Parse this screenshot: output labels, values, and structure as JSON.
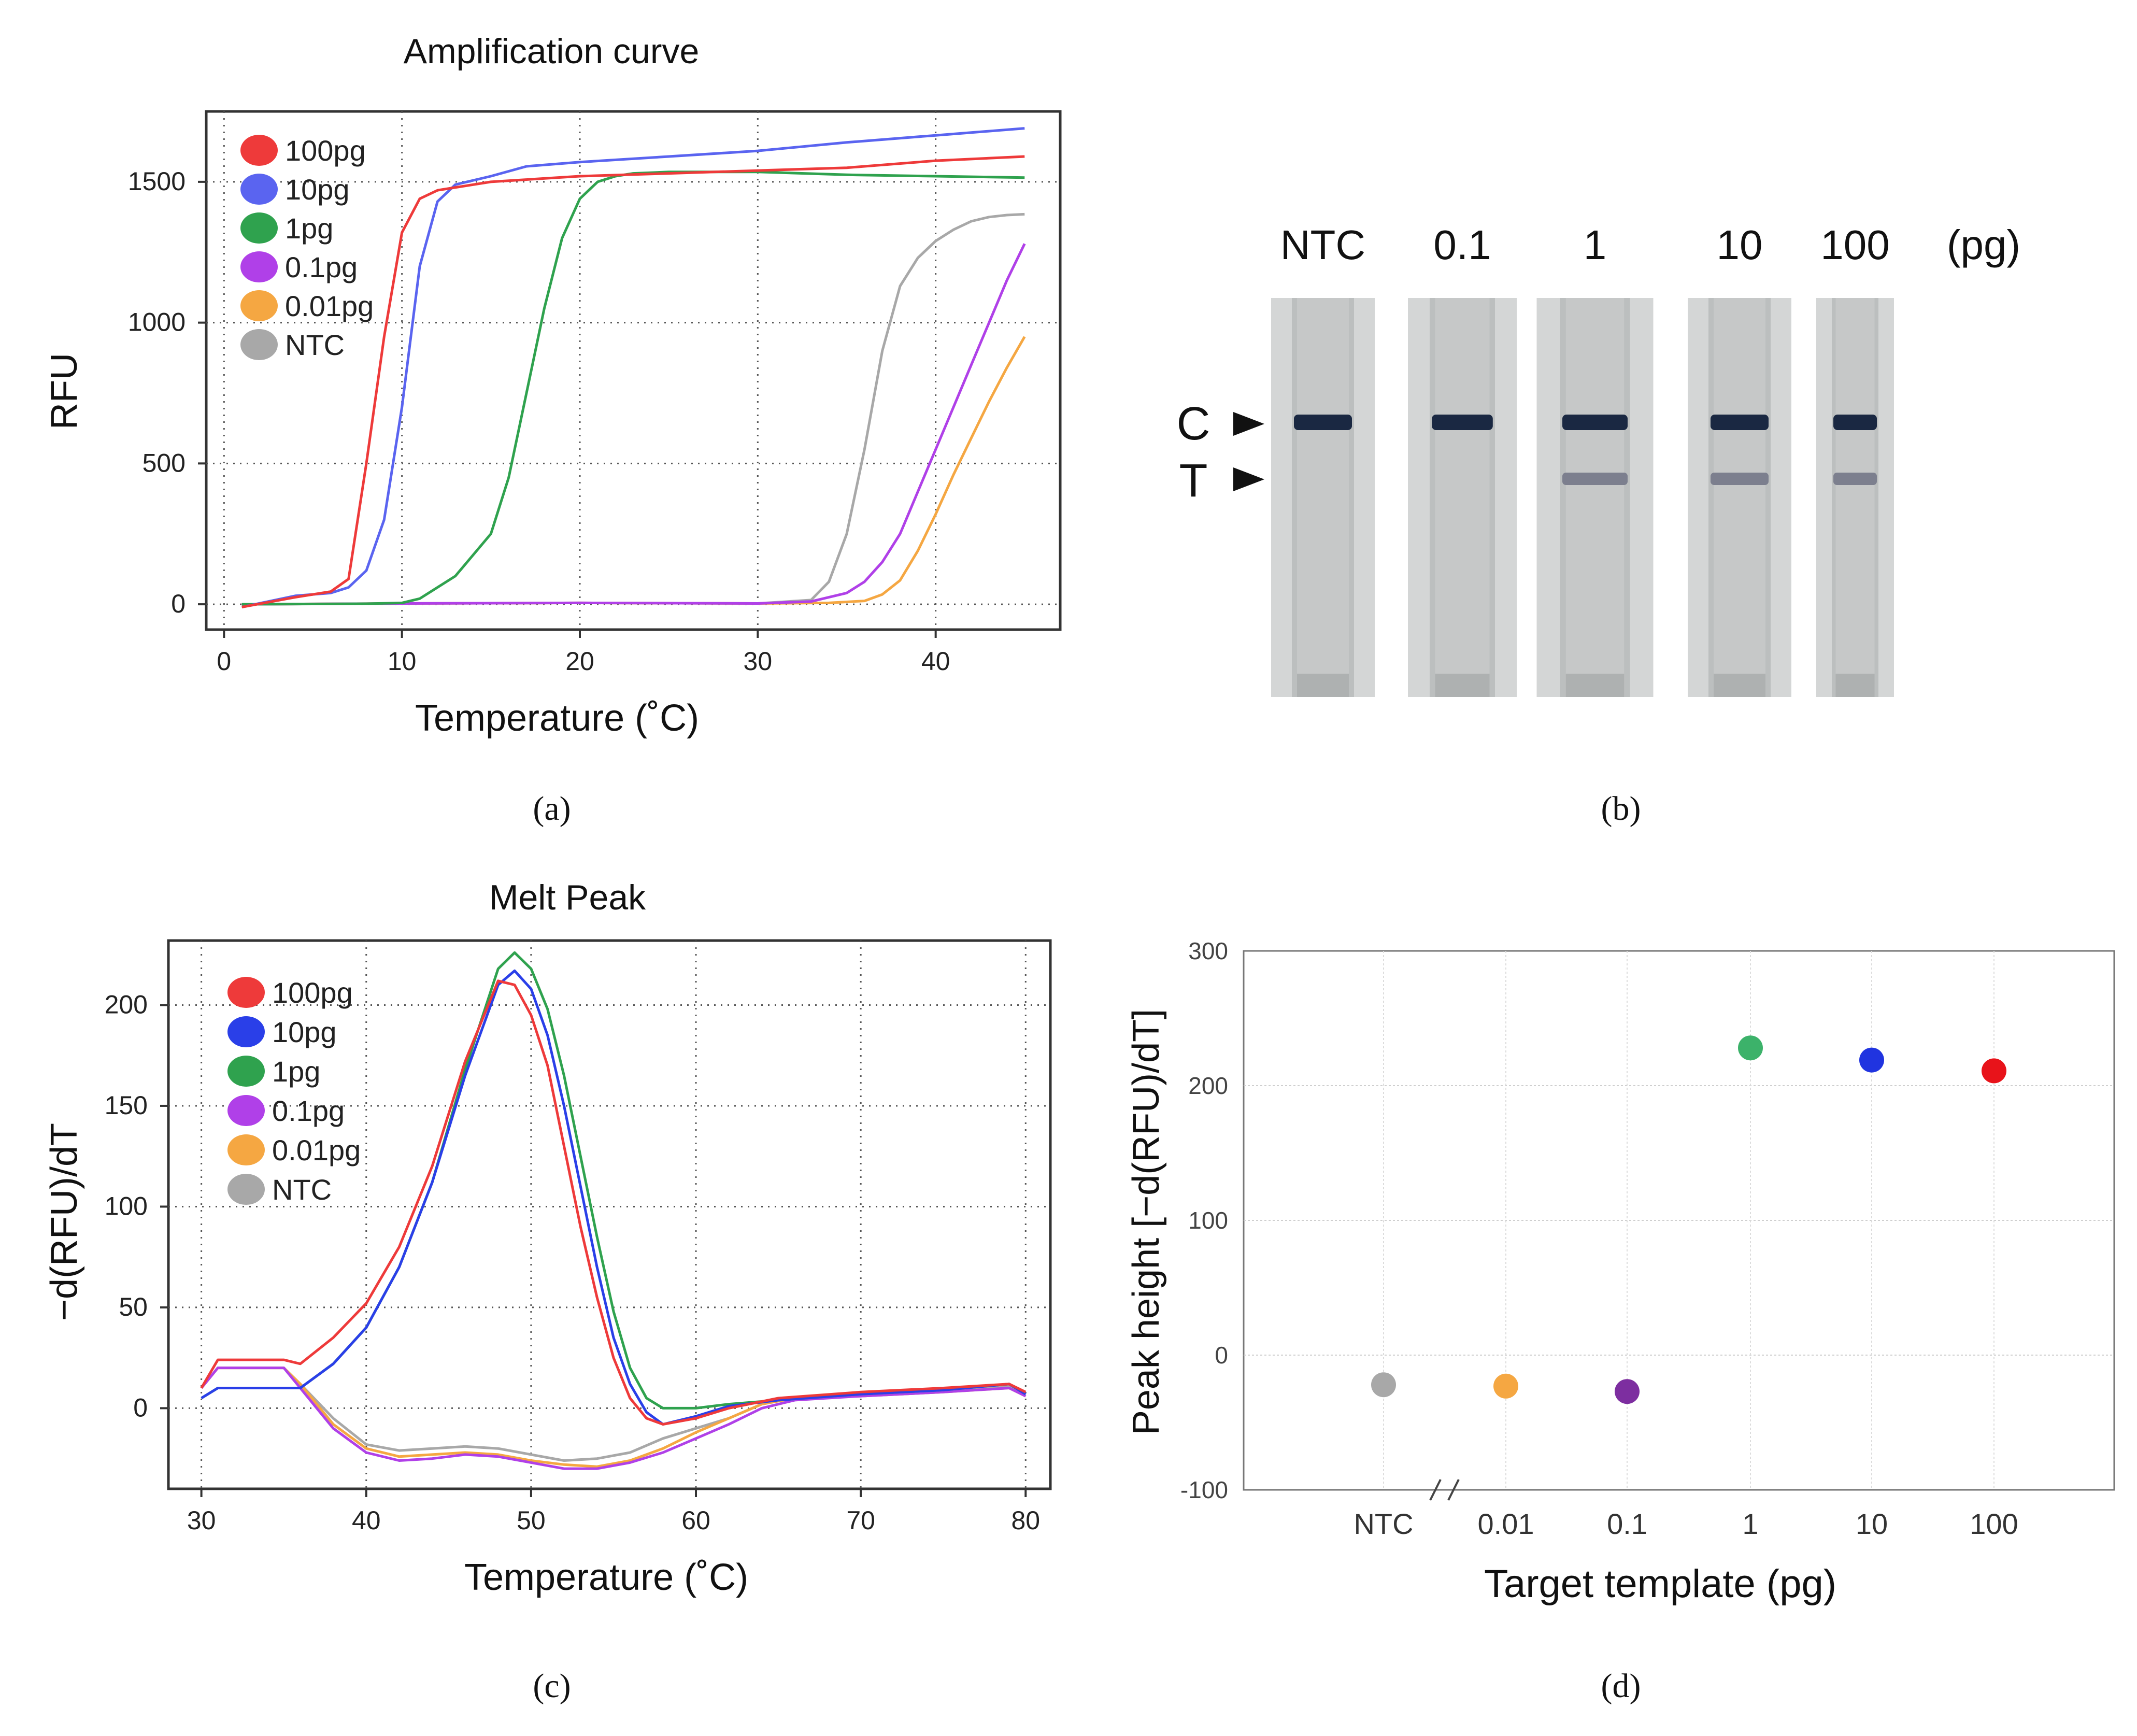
{
  "chart_data": [
    {
      "panel": "a",
      "type": "line",
      "title": "Amplification curve",
      "xlabel": "Temperature (˚C)",
      "ylabel": "RFU",
      "xlim": [
        -1,
        47
      ],
      "ylim": [
        -90,
        1750
      ],
      "xticks": [
        0,
        10,
        20,
        30,
        40
      ],
      "yticks": [
        0,
        500,
        1000,
        1500
      ],
      "grid": true,
      "legend_position": "top-left",
      "series": [
        {
          "name": "100pg",
          "color": "#ee3a3a",
          "x": [
            1,
            4,
            6,
            7,
            8,
            9,
            10,
            11,
            12,
            15,
            20,
            25,
            30,
            35,
            40,
            45
          ],
          "y": [
            -10,
            25,
            45,
            90,
            500,
            950,
            1320,
            1440,
            1470,
            1500,
            1520,
            1530,
            1540,
            1550,
            1575,
            1590
          ]
        },
        {
          "name": "10pg",
          "color": "#5a64f0",
          "x": [
            1,
            4,
            6,
            7,
            8,
            9,
            10,
            11,
            12,
            13,
            15,
            17,
            20,
            25,
            30,
            35,
            40,
            45
          ],
          "y": [
            -10,
            30,
            40,
            60,
            120,
            300,
            700,
            1200,
            1430,
            1490,
            1520,
            1555,
            1570,
            1590,
            1610,
            1640,
            1665,
            1690
          ]
        },
        {
          "name": "1pg",
          "color": "#2fa24e",
          "x": [
            1,
            8,
            10,
            11,
            13,
            15,
            16,
            17,
            18,
            19,
            20,
            21,
            22,
            23,
            25,
            30,
            35,
            40,
            45
          ],
          "y": [
            0,
            2,
            5,
            20,
            100,
            250,
            450,
            750,
            1050,
            1300,
            1440,
            1500,
            1520,
            1530,
            1535,
            1535,
            1525,
            1520,
            1515
          ]
        },
        {
          "name": "0.1pg",
          "color": "#b040e8",
          "x": [
            1,
            10,
            20,
            30,
            33,
            35,
            36,
            37,
            38,
            39,
            40,
            41,
            42,
            43,
            44,
            45
          ],
          "y": [
            0,
            3,
            5,
            3,
            10,
            40,
            80,
            150,
            250,
            400,
            550,
            700,
            850,
            1000,
            1150,
            1280
          ]
        },
        {
          "name": "0.01pg",
          "color": "#f5a742",
          "x": [
            1,
            10,
            20,
            30,
            34,
            36,
            37,
            38,
            39,
            40,
            41,
            42,
            43,
            44,
            45
          ],
          "y": [
            0,
            3,
            5,
            3,
            5,
            12,
            35,
            85,
            190,
            320,
            460,
            590,
            720,
            840,
            950
          ]
        },
        {
          "name": "NTC",
          "color": "#a8a8a8",
          "x": [
            1,
            10,
            20,
            30,
            33,
            34,
            35,
            36,
            37,
            38,
            39,
            40,
            41,
            42,
            43,
            44,
            45
          ],
          "y": [
            0,
            3,
            5,
            3,
            15,
            80,
            250,
            550,
            900,
            1130,
            1230,
            1290,
            1330,
            1360,
            1375,
            1382,
            1385
          ]
        }
      ]
    },
    {
      "panel": "b",
      "type": "image",
      "description": "Lateral flow test strips",
      "lanes": [
        "NTC",
        "0.1",
        "1",
        "10",
        "100"
      ],
      "unit": "(pg)",
      "markers": [
        "C",
        "T"
      ],
      "test_line_visible": [
        false,
        false,
        true,
        true,
        true
      ]
    },
    {
      "panel": "c",
      "type": "line",
      "title": "Melt Peak",
      "xlabel": "Temperature (˚C)",
      "ylabel": "−d(RFU)/dT",
      "xlim": [
        28,
        81.5
      ],
      "ylim": [
        -40,
        232
      ],
      "xticks": [
        30,
        40,
        50,
        60,
        70,
        80
      ],
      "yticks": [
        0,
        50,
        100,
        150,
        200
      ],
      "grid": true,
      "legend_position": "top-left",
      "series": [
        {
          "name": "100pg",
          "color": "#ee3a3a",
          "x": [
            30,
            31,
            35,
            36,
            38,
            40,
            42,
            44,
            46,
            48,
            49,
            50,
            51,
            52,
            53,
            54,
            55,
            56,
            57,
            58,
            60,
            62,
            65,
            70,
            75,
            79,
            80
          ],
          "y": [
            10,
            24,
            24,
            22,
            35,
            52,
            80,
            120,
            172,
            212,
            210,
            195,
            170,
            130,
            90,
            55,
            25,
            5,
            -5,
            -8,
            -5,
            0,
            5,
            8,
            10,
            12,
            8
          ]
        },
        {
          "name": "10pg",
          "color": "#2a3fe8",
          "x": [
            30,
            31,
            35,
            36,
            38,
            40,
            42,
            44,
            46,
            48,
            49,
            50,
            51,
            52,
            53,
            54,
            55,
            56,
            57,
            58,
            60,
            62,
            65,
            70,
            75,
            79,
            80
          ],
          "y": [
            5,
            10,
            10,
            10,
            22,
            40,
            70,
            112,
            165,
            210,
            217,
            208,
            185,
            150,
            110,
            70,
            35,
            12,
            -2,
            -8,
            -4,
            1,
            4,
            7,
            9,
            12,
            7
          ]
        },
        {
          "name": "1pg",
          "color": "#2fa24e",
          "x": [
            30,
            31,
            35,
            36,
            38,
            40,
            42,
            44,
            46,
            48,
            49,
            50,
            51,
            52,
            53,
            54,
            55,
            56,
            57,
            58,
            60,
            62,
            65,
            70,
            75,
            79,
            80
          ],
          "y": [
            5,
            10,
            10,
            10,
            22,
            40,
            70,
            112,
            168,
            218,
            226,
            218,
            198,
            165,
            125,
            85,
            48,
            20,
            5,
            0,
            0,
            2,
            4,
            7,
            9,
            12,
            7
          ]
        },
        {
          "name": "0.1pg",
          "color": "#b040e8",
          "x": [
            30,
            31,
            35,
            36,
            38,
            40,
            42,
            44,
            46,
            48,
            50,
            52,
            54,
            56,
            58,
            60,
            62,
            64,
            66,
            70,
            75,
            79,
            80
          ],
          "y": [
            10,
            20,
            20,
            10,
            -10,
            -22,
            -26,
            -25,
            -23,
            -24,
            -27,
            -30,
            -30,
            -27,
            -22,
            -15,
            -8,
            0,
            4,
            6,
            8,
            10,
            6
          ]
        },
        {
          "name": "0.01pg",
          "color": "#f5a742",
          "x": [
            30,
            31,
            35,
            36,
            38,
            40,
            42,
            44,
            46,
            48,
            50,
            52,
            54,
            56,
            58,
            60,
            62,
            64,
            66,
            70,
            75,
            79,
            80
          ],
          "y": [
            10,
            20,
            20,
            12,
            -8,
            -20,
            -24,
            -23,
            -22,
            -23,
            -26,
            -28,
            -29,
            -26,
            -20,
            -12,
            -5,
            2,
            5,
            6,
            8,
            10,
            6
          ]
        },
        {
          "name": "NTC",
          "color": "#a8a8a8",
          "x": [
            30,
            31,
            35,
            36,
            38,
            40,
            42,
            44,
            46,
            48,
            50,
            52,
            54,
            56,
            58,
            60,
            62,
            64,
            66,
            70,
            75,
            79,
            80
          ],
          "y": [
            10,
            20,
            20,
            12,
            -5,
            -18,
            -21,
            -20,
            -19,
            -20,
            -23,
            -26,
            -25,
            -22,
            -15,
            -10,
            -5,
            2,
            5,
            6,
            8,
            11,
            6
          ]
        }
      ]
    },
    {
      "panel": "d",
      "type": "scatter",
      "xlabel": "Target template (pg)",
      "ylabel": "Peak height [−d(RFU)/dT]",
      "categories": [
        "NTC",
        "0.01",
        "0.1",
        "1",
        "10",
        "100"
      ],
      "values": [
        -22,
        -23,
        -27,
        228,
        219,
        211
      ],
      "colors": [
        "#a8a8a8",
        "#f5a742",
        "#7d2ea0",
        "#3cb26a",
        "#2034e0",
        "#e8131a"
      ],
      "ylim": [
        -100,
        300
      ],
      "yticks": [
        -100,
        0,
        100,
        200,
        300
      ],
      "grid": true,
      "axis_break": "between NTC and 0.01"
    }
  ],
  "legend_labels": [
    "100pg",
    "10pg",
    "1pg",
    "0.1pg",
    "0.01pg",
    "NTC"
  ],
  "panel_labels": [
    "(a)",
    "(b)",
    "(c)",
    "(d)"
  ]
}
